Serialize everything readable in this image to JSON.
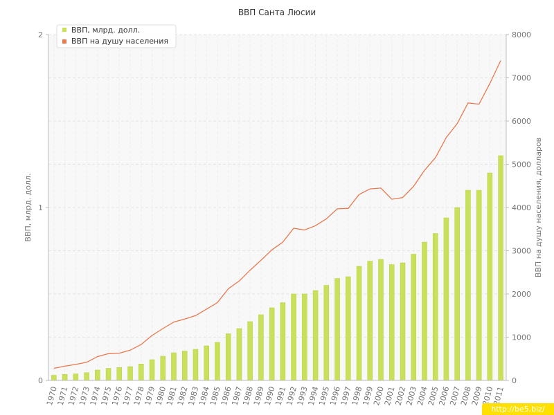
{
  "chart_data": {
    "type": "bar",
    "title": "ВВП Санта Люсии",
    "ylabel_left": "ВВП, млрд. долл.",
    "ylabel_right": "ВВП на душу населения, долларов",
    "ylim_left": [
      0,
      2
    ],
    "ylim_right": [
      0,
      8000
    ],
    "left_ticks": [
      "0",
      "1",
      "2"
    ],
    "right_ticks": [
      "0",
      "1000",
      "2000",
      "3000",
      "4000",
      "5000",
      "6000",
      "7000",
      "8000"
    ],
    "legend_placement": "top-left",
    "categories": [
      "1970",
      "1971",
      "1972",
      "1973",
      "1974",
      "1975",
      "1976",
      "1977",
      "1978",
      "1979",
      "1980",
      "1981",
      "1982",
      "1983",
      "1984",
      "1985",
      "1986",
      "1987",
      "1988",
      "1989",
      "1990",
      "1991",
      "1992",
      "1993",
      "1994",
      "1995",
      "1996",
      "1997",
      "1998",
      "1999",
      "2000",
      "2001",
      "2002",
      "2003",
      "2004",
      "2005",
      "2006",
      "2007",
      "2008",
      "2009",
      "2010",
      "2011"
    ],
    "series": [
      {
        "name": "ВВП, млрд. долл.",
        "type": "bar",
        "axis": "left",
        "color": "#c8e05a",
        "values": [
          0.03,
          0.035,
          0.038,
          0.045,
          0.06,
          0.07,
          0.075,
          0.08,
          0.095,
          0.12,
          0.14,
          0.16,
          0.17,
          0.18,
          0.2,
          0.22,
          0.27,
          0.3,
          0.34,
          0.38,
          0.42,
          0.45,
          0.5,
          0.5,
          0.52,
          0.55,
          0.59,
          0.6,
          0.66,
          0.69,
          0.7,
          0.67,
          0.68,
          0.73,
          0.8,
          0.85,
          0.94,
          1.0,
          1.1,
          1.1,
          1.2,
          1.3
        ]
      },
      {
        "name": "ВВП на душу населения",
        "type": "line",
        "axis": "right",
        "color": "#e8784e",
        "values": [
          280,
          330,
          370,
          420,
          550,
          620,
          630,
          700,
          830,
          1040,
          1200,
          1350,
          1420,
          1500,
          1650,
          1800,
          2120,
          2300,
          2550,
          2780,
          3020,
          3200,
          3520,
          3480,
          3580,
          3740,
          3970,
          3980,
          4300,
          4430,
          4450,
          4190,
          4230,
          4490,
          4860,
          5150,
          5620,
          5940,
          6420,
          6390,
          6870,
          7400
        ]
      }
    ]
  },
  "watermark": "http://be5.biz/"
}
